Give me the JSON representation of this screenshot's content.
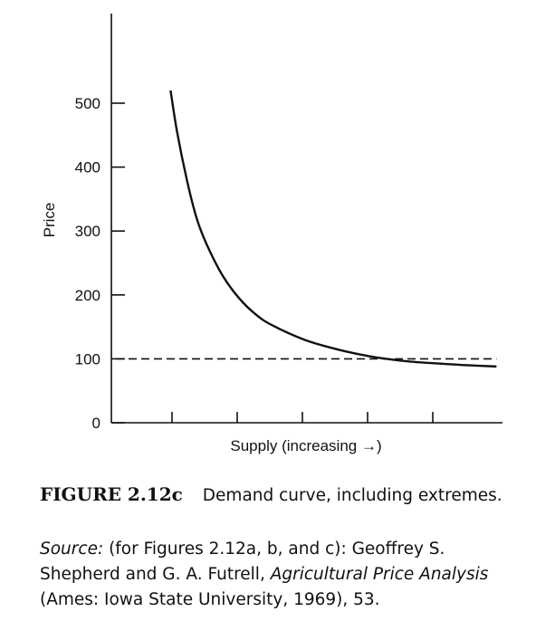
{
  "chart_data": {
    "type": "line",
    "xlabel": "Supply (increasing →)",
    "ylabel": "Price",
    "ylim": [
      0,
      500
    ],
    "yticks": [
      0,
      100,
      200,
      300,
      400,
      500
    ],
    "x_ticks_count": 5,
    "series": [
      {
        "style": "solid",
        "x": [
          0.45,
          0.55,
          0.7,
          0.85,
          1.0,
          1.25,
          1.5,
          1.75,
          2.0,
          2.5,
          3.0,
          3.5,
          4.0,
          4.5,
          5.0,
          5.45
        ],
        "y": [
          520,
          455,
          380,
          320,
          280,
          230,
          195,
          170,
          153,
          130,
          115,
          104,
          97,
          93,
          90,
          88
        ]
      },
      {
        "style": "dashed",
        "x": [
          0.0,
          5.45
        ],
        "y": [
          100,
          100
        ]
      }
    ]
  },
  "caption": {
    "figure_label": "FIGURE 2.12c",
    "figure_text": "Demand curve, including extremes.",
    "source_label": "Source:",
    "source_text_1": " (for Figures 2.12a, b, and c): Geoffrey S. Shepherd and G. A. Futrell, ",
    "source_title": "Agricultural Price Analysis",
    "source_text_2": " (Ames: Iowa State University, 1969), 53."
  }
}
